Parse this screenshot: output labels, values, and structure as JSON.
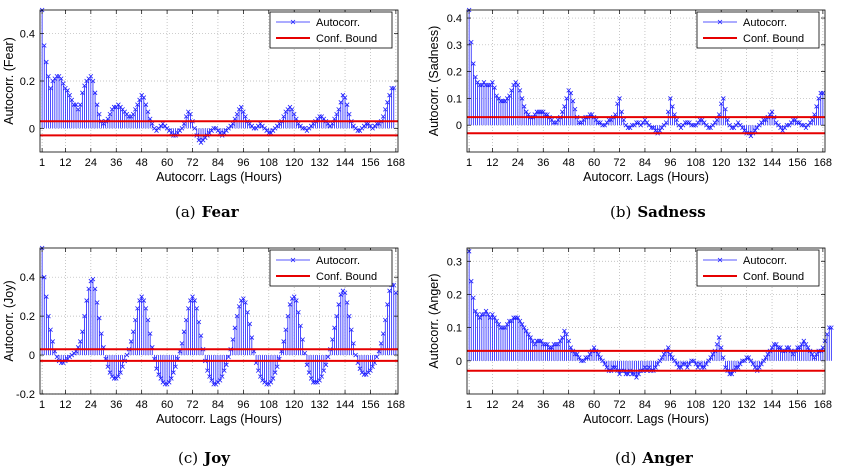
{
  "chart_data": [
    {
      "type": "stem",
      "title": "Fear",
      "caption_tag": "(a)",
      "xlabel": "Autocorr. Lags (Hours)",
      "ylabel": "Autocorr. (Fear)",
      "xlim": [
        0,
        169
      ],
      "ylim": [
        -0.1,
        0.5
      ],
      "xticks": [
        1,
        12,
        24,
        36,
        48,
        60,
        72,
        84,
        96,
        108,
        120,
        132,
        144,
        156,
        168
      ],
      "yticks": [
        0,
        0.2,
        0.4
      ],
      "conf_bound": 0.03,
      "grid": true,
      "legend": {
        "placement": "top-right",
        "series": "Autocorr.",
        "bound": "Conf. Bound"
      },
      "values": [
        0.5,
        0.35,
        0.28,
        0.22,
        0.17,
        0.2,
        0.21,
        0.22,
        0.22,
        0.21,
        0.19,
        0.17,
        0.16,
        0.14,
        0.12,
        0.1,
        0.1,
        0.08,
        0.1,
        0.15,
        0.18,
        0.2,
        0.21,
        0.22,
        0.2,
        0.15,
        0.1,
        0.06,
        0.03,
        0.02,
        0.03,
        0.04,
        0.06,
        0.08,
        0.09,
        0.09,
        0.1,
        0.09,
        0.08,
        0.07,
        0.06,
        0.05,
        0.05,
        0.06,
        0.08,
        0.1,
        0.12,
        0.14,
        0.13,
        0.1,
        0.07,
        0.04,
        0.02,
        0.0,
        -0.01,
        0.0,
        0.01,
        0.02,
        0.01,
        0.0,
        -0.01,
        -0.02,
        -0.03,
        -0.03,
        -0.02,
        -0.01,
        0.0,
        0.02,
        0.05,
        0.07,
        0.06,
        0.03,
        0.0,
        -0.03,
        -0.05,
        -0.06,
        -0.05,
        -0.04,
        -0.03,
        -0.02,
        -0.01,
        0.0,
        0.0,
        -0.01,
        -0.02,
        -0.03,
        -0.02,
        -0.01,
        0.0,
        0.01,
        0.02,
        0.04,
        0.06,
        0.08,
        0.09,
        0.07,
        0.05,
        0.03,
        0.02,
        0.01,
        0.0,
        0.0,
        0.01,
        0.02,
        0.01,
        0.0,
        -0.01,
        -0.02,
        -0.02,
        -0.01,
        0.0,
        0.01,
        0.02,
        0.03,
        0.05,
        0.07,
        0.08,
        0.09,
        0.08,
        0.06,
        0.04,
        0.02,
        0.01,
        0.0,
        0.0,
        -0.01,
        0.0,
        0.01,
        0.02,
        0.03,
        0.04,
        0.05,
        0.05,
        0.04,
        0.03,
        0.02,
        0.01,
        0.02,
        0.04,
        0.06,
        0.08,
        0.11,
        0.14,
        0.13,
        0.1,
        0.06,
        0.03,
        0.01,
        0.0,
        -0.01,
        -0.01,
        0.0,
        0.01,
        0.02,
        0.02,
        0.01,
        0.0,
        0.01,
        0.02,
        0.02,
        0.03,
        0.05,
        0.08,
        0.11,
        0.14,
        0.17,
        0.17
      ]
    },
    {
      "type": "stem",
      "title": "Sadness",
      "caption_tag": "(b)",
      "xlabel": "Autocorr. Lags (Hours)",
      "ylabel": "Autocorr. (Sadness)",
      "xlim": [
        0,
        169
      ],
      "ylim": [
        -0.1,
        0.43
      ],
      "xticks": [
        1,
        12,
        24,
        36,
        48,
        60,
        72,
        84,
        96,
        108,
        120,
        132,
        144,
        156,
        168
      ],
      "yticks": [
        0,
        0.1,
        0.2,
        0.3,
        0.4
      ],
      "conf_bound": 0.03,
      "grid": true,
      "legend": {
        "placement": "top-right",
        "series": "Autocorr.",
        "bound": "Conf. Bound"
      },
      "values": [
        0.43,
        0.31,
        0.23,
        0.18,
        0.16,
        0.15,
        0.15,
        0.16,
        0.15,
        0.15,
        0.15,
        0.16,
        0.14,
        0.11,
        0.1,
        0.09,
        0.09,
        0.09,
        0.1,
        0.11,
        0.13,
        0.15,
        0.16,
        0.15,
        0.13,
        0.1,
        0.07,
        0.05,
        0.04,
        0.03,
        0.03,
        0.04,
        0.05,
        0.05,
        0.05,
        0.05,
        0.04,
        0.04,
        0.03,
        0.02,
        0.01,
        0.01,
        0.02,
        0.03,
        0.05,
        0.07,
        0.1,
        0.13,
        0.12,
        0.09,
        0.06,
        0.03,
        0.01,
        0.01,
        0.02,
        0.03,
        0.03,
        0.04,
        0.04,
        0.03,
        0.02,
        0.01,
        0.01,
        0.0,
        0.0,
        0.01,
        0.02,
        0.02,
        0.03,
        0.04,
        0.08,
        0.1,
        0.05,
        0.02,
        0.0,
        -0.01,
        -0.01,
        0.0,
        0.0,
        0.01,
        0.01,
        0.0,
        0.01,
        0.02,
        0.01,
        0.0,
        -0.01,
        -0.01,
        -0.02,
        -0.03,
        -0.02,
        -0.01,
        0.0,
        0.01,
        0.05,
        0.1,
        0.07,
        0.04,
        0.02,
        0.0,
        -0.01,
        0.0,
        0.01,
        0.01,
        0.01,
        0.0,
        0.0,
        0.0,
        0.01,
        0.02,
        0.02,
        0.01,
        0.0,
        -0.01,
        -0.01,
        0.0,
        0.01,
        0.02,
        0.04,
        0.08,
        0.1,
        0.06,
        0.02,
        0.0,
        -0.01,
        -0.01,
        0.0,
        0.01,
        0.0,
        -0.01,
        -0.02,
        -0.03,
        -0.03,
        -0.04,
        -0.03,
        -0.02,
        -0.01,
        0.0,
        0.01,
        0.02,
        0.02,
        0.03,
        0.04,
        0.05,
        0.03,
        0.01,
        0.0,
        -0.01,
        -0.02,
        -0.01,
        0.0,
        0.0,
        0.01,
        0.02,
        0.02,
        0.01,
        0.01,
        0.0,
        0.0,
        -0.01,
        0.0,
        0.01,
        0.02,
        0.04,
        0.07,
        0.1,
        0.12,
        0.12
      ]
    },
    {
      "type": "stem",
      "title": "Joy",
      "caption_tag": "(c)",
      "xlabel": "Autocorr. Lags (Hours)",
      "ylabel": "Autocorr. (Joy)",
      "xlim": [
        0,
        169
      ],
      "ylim": [
        -0.2,
        0.55
      ],
      "xticks": [
        1,
        12,
        24,
        36,
        48,
        60,
        72,
        84,
        96,
        108,
        120,
        132,
        144,
        156,
        168
      ],
      "yticks": [
        -0.2,
        0,
        0.2,
        0.4
      ],
      "conf_bound": 0.03,
      "grid": true,
      "legend": {
        "placement": "top-right",
        "series": "Autocorr.",
        "bound": "Conf. Bound"
      },
      "values": [
        0.55,
        0.4,
        0.3,
        0.2,
        0.13,
        0.07,
        0.02,
        -0.01,
        -0.03,
        -0.04,
        -0.04,
        -0.03,
        -0.02,
        -0.01,
        0.0,
        0.01,
        0.02,
        0.04,
        0.07,
        0.12,
        0.2,
        0.28,
        0.34,
        0.38,
        0.39,
        0.34,
        0.27,
        0.19,
        0.11,
        0.04,
        -0.02,
        -0.06,
        -0.09,
        -0.11,
        -0.12,
        -0.12,
        -0.11,
        -0.09,
        -0.06,
        -0.03,
        0.0,
        0.03,
        0.07,
        0.12,
        0.18,
        0.24,
        0.28,
        0.3,
        0.28,
        0.24,
        0.18,
        0.11,
        0.04,
        -0.02,
        -0.07,
        -0.1,
        -0.12,
        -0.14,
        -0.15,
        -0.15,
        -0.14,
        -0.12,
        -0.09,
        -0.06,
        -0.02,
        0.02,
        0.06,
        0.12,
        0.18,
        0.24,
        0.28,
        0.3,
        0.28,
        0.24,
        0.17,
        0.1,
        0.03,
        -0.03,
        -0.08,
        -0.11,
        -0.13,
        -0.15,
        -0.15,
        -0.14,
        -0.13,
        -0.11,
        -0.08,
        -0.05,
        -0.01,
        0.03,
        0.08,
        0.14,
        0.2,
        0.25,
        0.28,
        0.29,
        0.27,
        0.22,
        0.16,
        0.09,
        0.02,
        -0.04,
        -0.08,
        -0.11,
        -0.13,
        -0.14,
        -0.15,
        -0.15,
        -0.14,
        -0.12,
        -0.09,
        -0.06,
        -0.02,
        0.02,
        0.07,
        0.13,
        0.2,
        0.26,
        0.29,
        0.3,
        0.28,
        0.22,
        0.15,
        0.08,
        0.01,
        -0.05,
        -0.09,
        -0.12,
        -0.14,
        -0.14,
        -0.14,
        -0.13,
        -0.11,
        -0.08,
        -0.05,
        -0.01,
        0.03,
        0.08,
        0.14,
        0.2,
        0.26,
        0.31,
        0.33,
        0.32,
        0.27,
        0.2,
        0.13,
        0.06,
        0.0,
        -0.04,
        -0.07,
        -0.09,
        -0.1,
        -0.1,
        -0.09,
        -0.08,
        -0.06,
        -0.04,
        -0.01,
        0.02,
        0.06,
        0.11,
        0.18,
        0.26,
        0.33,
        0.36,
        0.36,
        0.32
      ]
    },
    {
      "type": "stem",
      "title": "Anger",
      "caption_tag": "(d)",
      "xlabel": "Autocorr. Lags (Hours)",
      "ylabel": "Autocorr. (Anger)",
      "xlim": [
        0,
        169
      ],
      "ylim": [
        -0.1,
        0.34
      ],
      "xticks": [
        1,
        12,
        24,
        36,
        48,
        60,
        72,
        84,
        96,
        108,
        120,
        132,
        144,
        156,
        168
      ],
      "yticks": [
        0,
        0.1,
        0.2,
        0.3
      ],
      "conf_bound": 0.03,
      "grid": true,
      "legend": {
        "placement": "top-right",
        "series": "Autocorr.",
        "bound": "Conf. Bound"
      },
      "values": [
        0.33,
        0.24,
        0.19,
        0.15,
        0.14,
        0.13,
        0.14,
        0.14,
        0.15,
        0.14,
        0.13,
        0.14,
        0.13,
        0.12,
        0.11,
        0.1,
        0.1,
        0.1,
        0.11,
        0.12,
        0.12,
        0.13,
        0.13,
        0.13,
        0.12,
        0.11,
        0.1,
        0.09,
        0.08,
        0.07,
        0.06,
        0.05,
        0.06,
        0.06,
        0.06,
        0.05,
        0.05,
        0.05,
        0.04,
        0.04,
        0.05,
        0.05,
        0.05,
        0.06,
        0.07,
        0.09,
        0.08,
        0.06,
        0.04,
        0.03,
        0.02,
        0.02,
        0.01,
        0.0,
        0.0,
        0.01,
        0.01,
        0.02,
        0.03,
        0.04,
        0.03,
        0.02,
        0.01,
        0.0,
        -0.01,
        -0.02,
        -0.03,
        -0.03,
        -0.02,
        -0.02,
        -0.03,
        -0.04,
        -0.03,
        -0.03,
        -0.04,
        -0.04,
        -0.03,
        -0.04,
        -0.04,
        -0.05,
        -0.04,
        -0.03,
        -0.03,
        -0.02,
        -0.03,
        -0.02,
        -0.03,
        -0.03,
        -0.02,
        -0.01,
        0.0,
        0.01,
        0.02,
        0.03,
        0.04,
        0.02,
        0.01,
        0.0,
        -0.01,
        -0.02,
        -0.02,
        -0.01,
        -0.01,
        -0.02,
        -0.01,
        0.0,
        0.0,
        -0.01,
        -0.02,
        -0.01,
        -0.02,
        -0.02,
        -0.01,
        0.0,
        0.01,
        0.02,
        0.03,
        0.05,
        0.07,
        0.04,
        0.01,
        -0.02,
        -0.03,
        -0.04,
        -0.04,
        -0.03,
        -0.02,
        -0.02,
        -0.01,
        0.0,
        0.0,
        0.01,
        0.01,
        0.0,
        -0.01,
        -0.02,
        -0.03,
        -0.02,
        -0.01,
        0.0,
        0.01,
        0.02,
        0.03,
        0.04,
        0.05,
        0.05,
        0.04,
        0.04,
        0.03,
        0.03,
        0.04,
        0.04,
        0.03,
        0.02,
        0.03,
        0.04,
        0.04,
        0.05,
        0.06,
        0.05,
        0.04,
        0.03,
        0.02,
        0.01,
        0.02,
        0.03,
        0.03,
        0.04,
        0.06,
        0.08,
        0.1,
        0.1
      ]
    }
  ]
}
